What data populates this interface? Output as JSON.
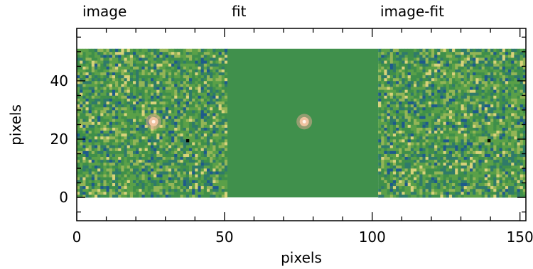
{
  "chart_data": {
    "type": "heatmap",
    "panel_titles": [
      "image",
      "fit",
      "image-fit"
    ],
    "xlabel": "pixels",
    "ylabel": "pixels",
    "xlim": [
      0,
      152
    ],
    "ylim": [
      -8,
      58
    ],
    "data_extent": {
      "x": [
        0,
        152
      ],
      "y": [
        0,
        51
      ]
    },
    "x_ticks": [
      0,
      50,
      100,
      150
    ],
    "y_ticks": [
      0,
      20,
      40
    ],
    "x_minor_step": 10,
    "y_minor_step": 5,
    "panels": [
      {
        "name": "image",
        "x_range": [
          0,
          51
        ],
        "content": "noise",
        "source": {
          "x": 26,
          "y": 26
        },
        "dark_pixel": {
          "x": 37,
          "y": 19
        }
      },
      {
        "name": "fit",
        "x_range": [
          51,
          102
        ],
        "content": "smooth",
        "source": {
          "x": 77,
          "y": 26
        }
      },
      {
        "name": "image-fit",
        "x_range": [
          102,
          152
        ],
        "content": "noise",
        "dark_pixel": {
          "x": 139,
          "y": 19
        }
      }
    ],
    "colormap": [
      "#1e5a8c",
      "#2f7a6a",
      "#3f8f4a",
      "#5aa048",
      "#93b556",
      "#d8d27a"
    ],
    "background_color": "#40904c",
    "source_colors": [
      "#f0c2a0",
      "#d8a890"
    ],
    "grid": false,
    "legend": "none"
  }
}
